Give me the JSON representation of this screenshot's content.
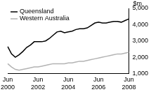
{
  "chart_data": {
    "type": "line",
    "y_label": "$m",
    "categories": [
      "Jun 2000",
      null,
      null,
      null,
      null,
      null,
      null,
      null,
      "Jun 2002",
      null,
      null,
      null,
      null,
      null,
      null,
      null,
      "Jun 2004",
      null,
      null,
      null,
      null,
      null,
      null,
      null,
      "Jun 2006",
      null,
      null,
      null,
      null,
      null,
      null,
      null,
      "Jun 2008"
    ],
    "series": [
      {
        "name": "Queensland",
        "color": "#000000",
        "values": [
          2650,
          2200,
          2000,
          2150,
          2350,
          2600,
          2750,
          2950,
          2950,
          2950,
          3000,
          3150,
          3350,
          3550,
          3600,
          3500,
          3550,
          3600,
          3700,
          3750,
          3750,
          3800,
          3950,
          4100,
          4150,
          4100,
          4100,
          4150,
          4200,
          4200,
          4150,
          4250,
          4350
        ]
      },
      {
        "name": "Western Australia",
        "color": "#b3b3b3",
        "values": [
          1600,
          1400,
          1250,
          1200,
          1250,
          1300,
          1350,
          1400,
          1400,
          1450,
          1500,
          1550,
          1600,
          1600,
          1600,
          1600,
          1650,
          1650,
          1700,
          1750,
          1750,
          1800,
          1850,
          1900,
          1950,
          2000,
          2050,
          2100,
          2150,
          2200,
          2200,
          2250,
          2300
        ]
      }
    ],
    "ylim": [
      1000,
      5000
    ],
    "yticks": [
      1000,
      2000,
      3000,
      4000,
      5000
    ],
    "grid": false,
    "legend": "top-left"
  }
}
